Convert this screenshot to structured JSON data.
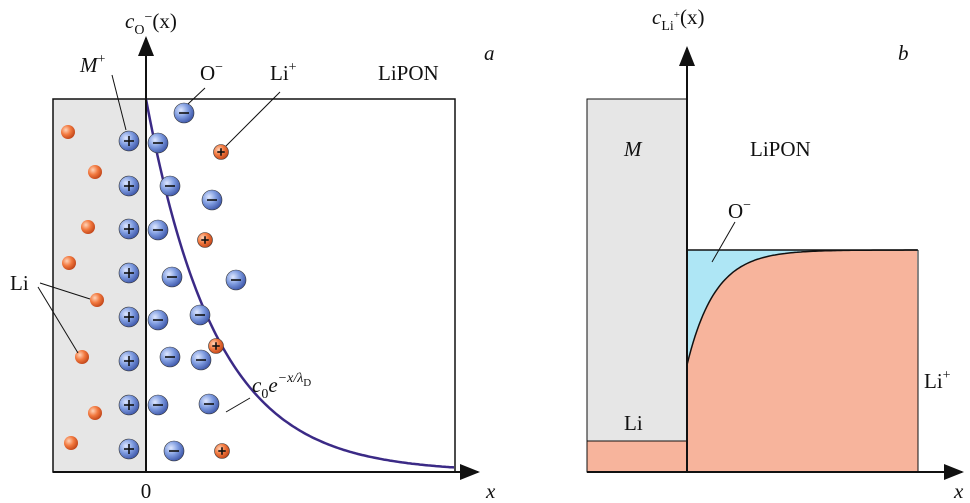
{
  "panel_a": {
    "letter": "a",
    "y_axis_label": {
      "base": "c",
      "sub": "O",
      "sup": "−",
      "arg": "(x)"
    },
    "x_axis_label": "x",
    "origin_label": "0",
    "metal_ion_label": {
      "base": "M",
      "sup": "+"
    },
    "anion_label": {
      "base": "O",
      "sup": "−"
    },
    "cation_label": {
      "base": "Li",
      "sup": "+"
    },
    "electrolyte_label": "LiPON",
    "lithium_label": "Li",
    "curve_label": {
      "base": "c",
      "sub": "0",
      "e": "e",
      "exp": "−x/λ",
      "exp_sub": "D"
    }
  },
  "panel_b": {
    "letter": "b",
    "y_axis_label": {
      "base": "c",
      "sub": "Li",
      "sub_sup": "+",
      "arg": "(x)"
    },
    "x_axis_label": "x",
    "metal_label": "M",
    "electrolyte_label": "LiPON",
    "anion_label": {
      "base": "O",
      "sup": "−"
    },
    "lithium_label": "Li",
    "cation_label": {
      "base": "Li",
      "sup": "+"
    }
  }
}
